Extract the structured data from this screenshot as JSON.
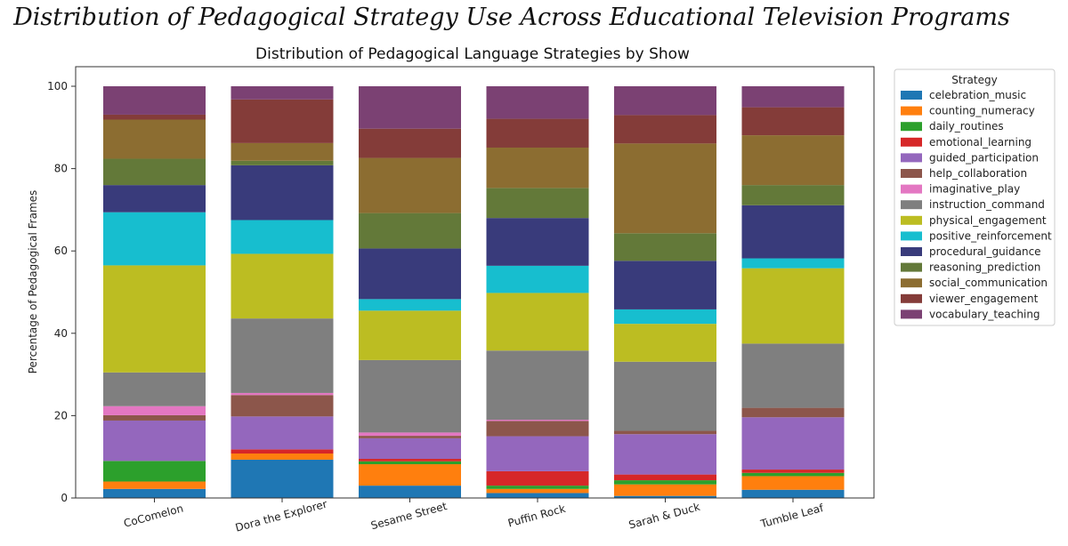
{
  "figure_title": "Distribution of Pedagogical Strategy Use Across Educational Television Programs",
  "chart_data": {
    "type": "bar",
    "stacked": true,
    "title": "Distribution of Pedagogical Language Strategies by Show",
    "xlabel": "",
    "ylabel": "Percentage of Pedagogical Frames",
    "ylim": [
      0,
      100
    ],
    "yticks": [
      0,
      20,
      40,
      60,
      80,
      100
    ],
    "grid": false,
    "legend_title": "Strategy",
    "legend_position": "right-outside",
    "categories": [
      "CoComelon",
      "Dora the Explorer",
      "Sesame Street",
      "Puffin Rock",
      "Sarah & Duck",
      "Tumble Leaf"
    ],
    "series": [
      {
        "name": "celebration_music",
        "color": "#1f77b4",
        "values": [
          2.2,
          9.3,
          3.0,
          1.2,
          0.5,
          2.0
        ]
      },
      {
        "name": "counting_numeracy",
        "color": "#ff7f0e",
        "values": [
          1.8,
          1.5,
          5.2,
          1.0,
          2.8,
          3.3
        ]
      },
      {
        "name": "daily_routines",
        "color": "#2ca02c",
        "values": [
          5.0,
          0.0,
          0.7,
          0.8,
          1.0,
          0.8
        ]
      },
      {
        "name": "emotional_learning",
        "color": "#d62728",
        "values": [
          0.0,
          1.0,
          0.6,
          3.5,
          1.4,
          0.8
        ]
      },
      {
        "name": "guided_participation",
        "color": "#9467bd",
        "values": [
          9.8,
          8.0,
          5.0,
          8.5,
          9.8,
          12.7
        ]
      },
      {
        "name": "help_collaboration",
        "color": "#8c564b",
        "values": [
          1.3,
          5.2,
          0.6,
          3.7,
          0.8,
          2.3
        ]
      },
      {
        "name": "imaginative_play",
        "color": "#e377c2",
        "values": [
          2.2,
          0.5,
          0.8,
          0.3,
          0.0,
          0.0
        ]
      },
      {
        "name": "instruction_command",
        "color": "#7f7f7f",
        "values": [
          8.2,
          18.1,
          17.6,
          16.8,
          16.8,
          15.6
        ]
      },
      {
        "name": "physical_engagement",
        "color": "#bcbd22",
        "values": [
          26.0,
          15.7,
          12.0,
          14.0,
          9.2,
          18.3
        ]
      },
      {
        "name": "positive_reinforcement",
        "color": "#17becf",
        "values": [
          12.9,
          8.2,
          2.8,
          6.6,
          3.5,
          2.4
        ]
      },
      {
        "name": "procedural_guidance",
        "color": "#393b7b",
        "values": [
          6.6,
          13.3,
          12.3,
          11.6,
          11.8,
          12.9
        ]
      },
      {
        "name": "reasoning_prediction",
        "color": "#637939",
        "values": [
          6.4,
          1.1,
          8.6,
          7.3,
          6.7,
          4.9
        ]
      },
      {
        "name": "social_communication",
        "color": "#8c6d31",
        "values": [
          9.5,
          4.3,
          13.4,
          9.8,
          21.8,
          12.1
        ]
      },
      {
        "name": "viewer_engagement",
        "color": "#843c39",
        "values": [
          1.2,
          10.6,
          7.1,
          7.0,
          6.9,
          6.8
        ]
      },
      {
        "name": "vocabulary_teaching",
        "color": "#7b4173",
        "values": [
          6.9,
          3.2,
          10.3,
          7.9,
          7.0,
          5.1
        ]
      }
    ]
  }
}
